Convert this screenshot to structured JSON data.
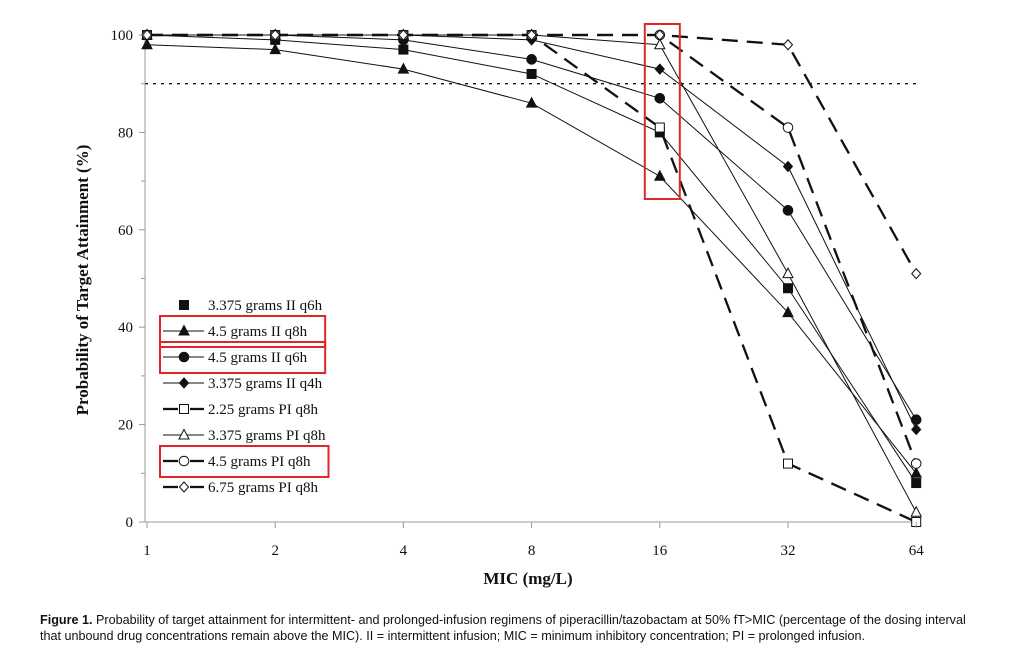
{
  "caption": {
    "label": "Figure 1.",
    "text": "Probability of target attainment for intermittent- and prolonged-infusion regimens of piperacillin/tazobactam at 50% fT>MIC (percentage of the dosing interval that unbound drug concentrations remain above the MIC). II = intermittent infusion; MIC = minimum inhibitory concentration; PI = prolonged infusion."
  },
  "colors": {
    "highlight": "#e0262b",
    "ink": "#111111"
  },
  "chart_data": {
    "type": "line",
    "xlabel": "MIC (mg/L)",
    "ylabel": "Probability of Target Attainment (%)",
    "categories": [
      "1",
      "2",
      "4",
      "8",
      "16",
      "32",
      "64"
    ],
    "yticks": [
      "0",
      "20",
      "40",
      "60",
      "80",
      "100"
    ],
    "ylim": [
      0,
      100
    ],
    "xscale": "log2",
    "target_line": 90,
    "legend_position": "bottom-left",
    "highlighted_mic": "16",
    "series": [
      {
        "name": "3.375 grams II q6h",
        "marker": "square",
        "filled": true,
        "dashed": false,
        "highlight": false,
        "values": [
          100,
          99,
          97,
          92,
          80,
          48,
          8
        ]
      },
      {
        "name": "4.5 grams II q8h",
        "marker": "triangle",
        "filled": true,
        "dashed": false,
        "highlight": true,
        "values": [
          98,
          97,
          93,
          86,
          71,
          43,
          10
        ]
      },
      {
        "name": "4.5 grams II q6h",
        "marker": "circle",
        "filled": true,
        "dashed": false,
        "highlight": true,
        "values": [
          100,
          100,
          99,
          95,
          87,
          64,
          21
        ]
      },
      {
        "name": "3.375 grams II q4h",
        "marker": "diamond",
        "filled": true,
        "dashed": false,
        "highlight": false,
        "values": [
          100,
          100,
          100,
          99,
          93,
          73,
          19
        ]
      },
      {
        "name": "2.25 grams PI q8h",
        "marker": "square",
        "filled": false,
        "dashed": true,
        "highlight": false,
        "values": [
          100,
          100,
          100,
          100,
          81,
          12,
          0
        ]
      },
      {
        "name": "3.375 grams PI q8h",
        "marker": "triangle",
        "filled": false,
        "dashed": false,
        "highlight": false,
        "values": [
          100,
          100,
          100,
          100,
          98,
          51,
          2
        ]
      },
      {
        "name": "4.5 grams PI q8h",
        "marker": "circle",
        "filled": false,
        "dashed": true,
        "highlight": true,
        "values": [
          100,
          100,
          100,
          100,
          100,
          81,
          12
        ]
      },
      {
        "name": "6.75 grams PI q8h",
        "marker": "diamond",
        "filled": false,
        "dashed": true,
        "highlight": false,
        "values": [
          100,
          100,
          100,
          100,
          100,
          98,
          51
        ]
      }
    ]
  }
}
